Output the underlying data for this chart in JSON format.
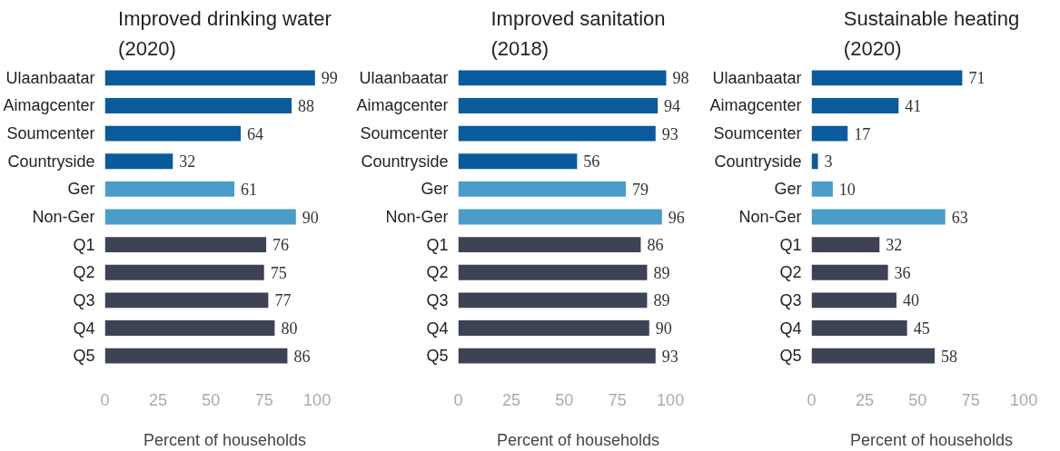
{
  "chart_data": [
    {
      "type": "bar",
      "orientation": "horizontal",
      "title": "Improved drinking water\n(2020)",
      "xlabel": "Percent of households",
      "categories": [
        "Ulaanbaatar",
        "Aimagcenter",
        "Soumcenter",
        "Countryside",
        "Ger",
        "Non-Ger",
        "Q1",
        "Q2",
        "Q3",
        "Q4",
        "Q5"
      ],
      "values": [
        99,
        88,
        64,
        32,
        61,
        90,
        76,
        75,
        77,
        80,
        86
      ],
      "colors": [
        "#0a5a9e",
        "#0a5a9e",
        "#0a5a9e",
        "#0a5a9e",
        "#4a9cc9",
        "#4a9cc9",
        "#3d4255",
        "#3d4255",
        "#3d4255",
        "#3d4255",
        "#3d4255"
      ],
      "xlim": [
        0,
        100
      ],
      "xticks": [
        0,
        25,
        50,
        75,
        100
      ],
      "data_labels": true,
      "grid": false
    },
    {
      "type": "bar",
      "orientation": "horizontal",
      "title": "Improved sanitation\n(2018)",
      "xlabel": "Percent of households",
      "categories": [
        "Ulaanbaatar",
        "Aimagcenter",
        "Soumcenter",
        "Countryside",
        "Ger",
        "Non-Ger",
        "Q1",
        "Q2",
        "Q3",
        "Q4",
        "Q5"
      ],
      "values": [
        98,
        94,
        93,
        56,
        79,
        96,
        86,
        89,
        89,
        90,
        93
      ],
      "colors": [
        "#0a5a9e",
        "#0a5a9e",
        "#0a5a9e",
        "#0a5a9e",
        "#4a9cc9",
        "#4a9cc9",
        "#3d4255",
        "#3d4255",
        "#3d4255",
        "#3d4255",
        "#3d4255"
      ],
      "xlim": [
        0,
        100
      ],
      "xticks": [
        0,
        25,
        50,
        75,
        100
      ],
      "data_labels": true,
      "grid": false
    },
    {
      "type": "bar",
      "orientation": "horizontal",
      "title": "Sustainable heating\n(2020)",
      "xlabel": "Percent of households",
      "categories": [
        "Ulaanbaatar",
        "Aimagcenter",
        "Soumcenter",
        "Countryside",
        "Ger",
        "Non-Ger",
        "Q1",
        "Q2",
        "Q3",
        "Q4",
        "Q5"
      ],
      "values": [
        71,
        41,
        17,
        3,
        10,
        63,
        32,
        36,
        40,
        45,
        58
      ],
      "colors": [
        "#0a5a9e",
        "#0a5a9e",
        "#0a5a9e",
        "#0a5a9e",
        "#4a9cc9",
        "#4a9cc9",
        "#3d4255",
        "#3d4255",
        "#3d4255",
        "#3d4255",
        "#3d4255"
      ],
      "xlim": [
        0,
        100
      ],
      "xticks": [
        0,
        25,
        50,
        75,
        100
      ],
      "data_labels": true,
      "grid": false
    }
  ]
}
